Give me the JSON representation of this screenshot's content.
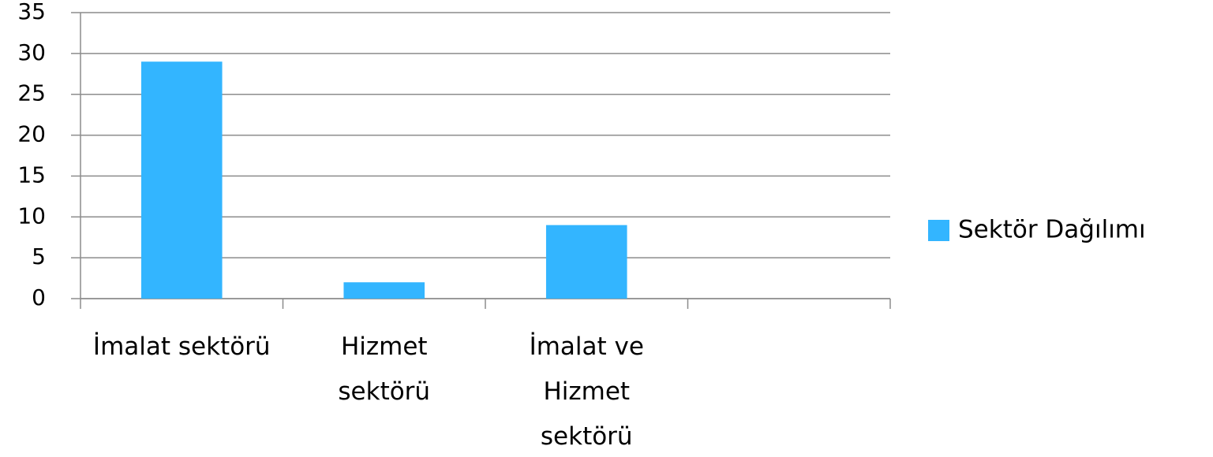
{
  "chart_data": {
    "type": "bar",
    "categories": [
      "İmalat sektörü",
      "Hizmet sektörü",
      "İmalat ve Hizmet sektörü",
      null
    ],
    "series": [
      {
        "name": "Sektör Dağılımı",
        "color": "#33b5ff",
        "values": [
          29,
          2,
          9,
          null
        ]
      }
    ],
    "ylim": [
      0,
      35
    ],
    "yticks": [
      0,
      5,
      10,
      15,
      20,
      25,
      30,
      35
    ],
    "grid": true,
    "legend": "right"
  }
}
